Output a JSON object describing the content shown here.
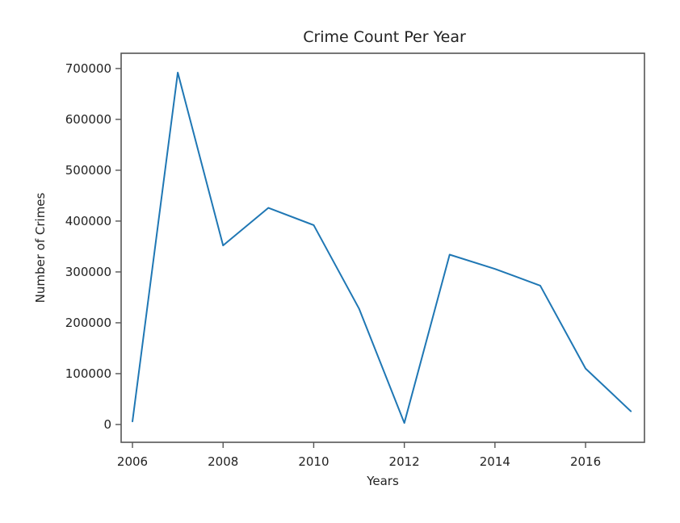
{
  "chart_data": {
    "type": "line",
    "title": "Crime Count Per Year",
    "xlabel": "Years",
    "ylabel": "Number of Crimes",
    "xlim": [
      2005.75,
      2017.3
    ],
    "ylim": [
      -35000,
      730000
    ],
    "xticks": [
      2006,
      2008,
      2010,
      2012,
      2014,
      2016
    ],
    "xtick_labels": [
      "2006",
      "2008",
      "2010",
      "2012",
      "2014",
      "2016"
    ],
    "yticks": [
      0,
      100000,
      200000,
      300000,
      400000,
      500000,
      600000,
      700000
    ],
    "ytick_labels": [
      "0",
      "100000",
      "200000",
      "300000",
      "400000",
      "500000",
      "600000",
      "700000"
    ],
    "grid": false,
    "series": [
      {
        "color": "#1f77b4",
        "x": [
          2006,
          2007,
          2008,
          2009,
          2010,
          2011,
          2012,
          2013,
          2014,
          2015,
          2016,
          2017
        ],
        "y": [
          6000,
          692000,
          352000,
          426000,
          392000,
          228000,
          3000,
          334000,
          306000,
          273000,
          110000,
          26000
        ]
      }
    ]
  }
}
